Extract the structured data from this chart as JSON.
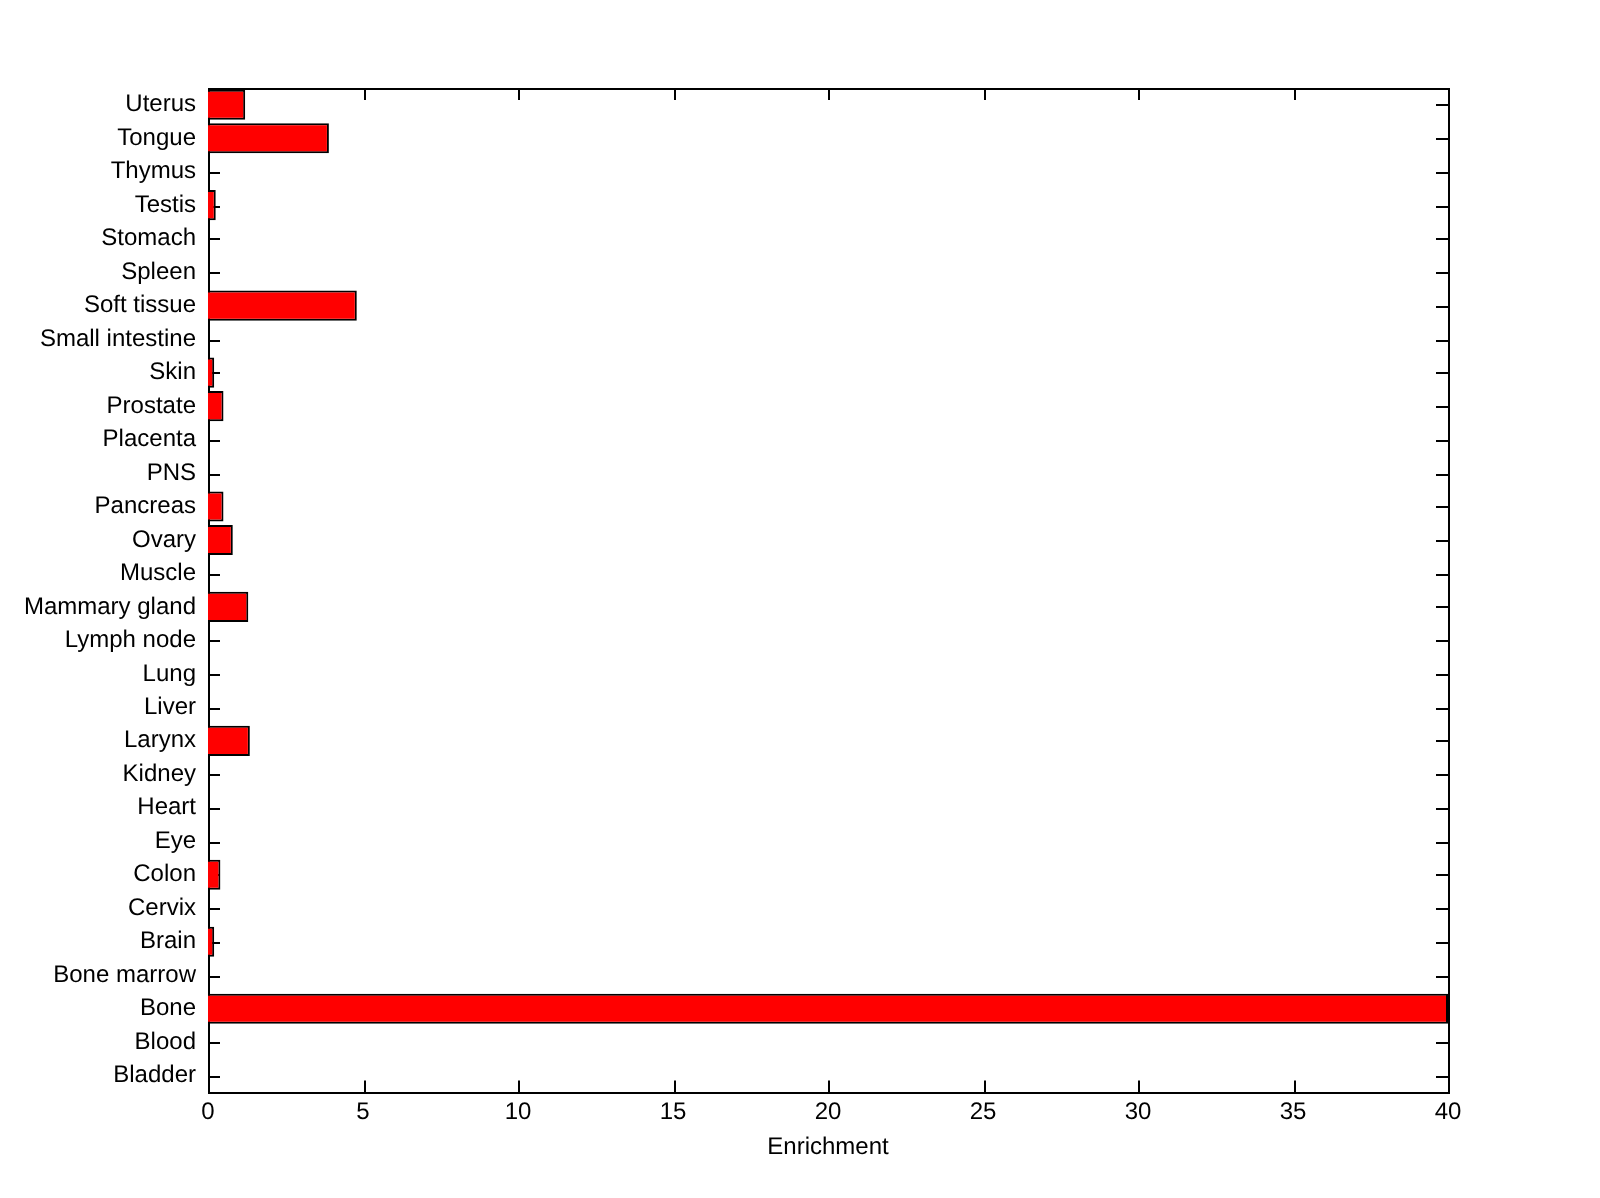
{
  "chart_data": {
    "type": "bar",
    "orientation": "horizontal",
    "xlabel": "Enrichment",
    "categories": [
      "Uterus",
      "Tongue",
      "Thymus",
      "Testis",
      "Stomach",
      "Spleen",
      "Soft tissue",
      "Small intestine",
      "Skin",
      "Prostate",
      "Placenta",
      "PNS",
      "Pancreas",
      "Ovary",
      "Muscle",
      "Mammary gland",
      "Lymph node",
      "Lung",
      "Liver",
      "Larynx",
      "Kidney",
      "Heart",
      "Eye",
      "Colon",
      "Cervix",
      "Brain",
      "Bone marrow",
      "Bone",
      "Blood",
      "Bladder"
    ],
    "values": [
      1.2,
      3.9,
      0,
      0.25,
      0,
      0,
      4.8,
      0,
      0.2,
      0.5,
      0,
      0,
      0.5,
      0.8,
      0,
      1.3,
      0,
      0,
      0,
      1.35,
      0,
      0,
      0,
      0.4,
      0,
      0.2,
      0,
      40,
      0,
      0
    ],
    "color": "#ff0000",
    "xlim": [
      0,
      40
    ],
    "xticks": [
      0,
      5,
      10,
      15,
      20,
      25,
      30,
      35,
      40
    ],
    "grid": false,
    "legend": false
  }
}
